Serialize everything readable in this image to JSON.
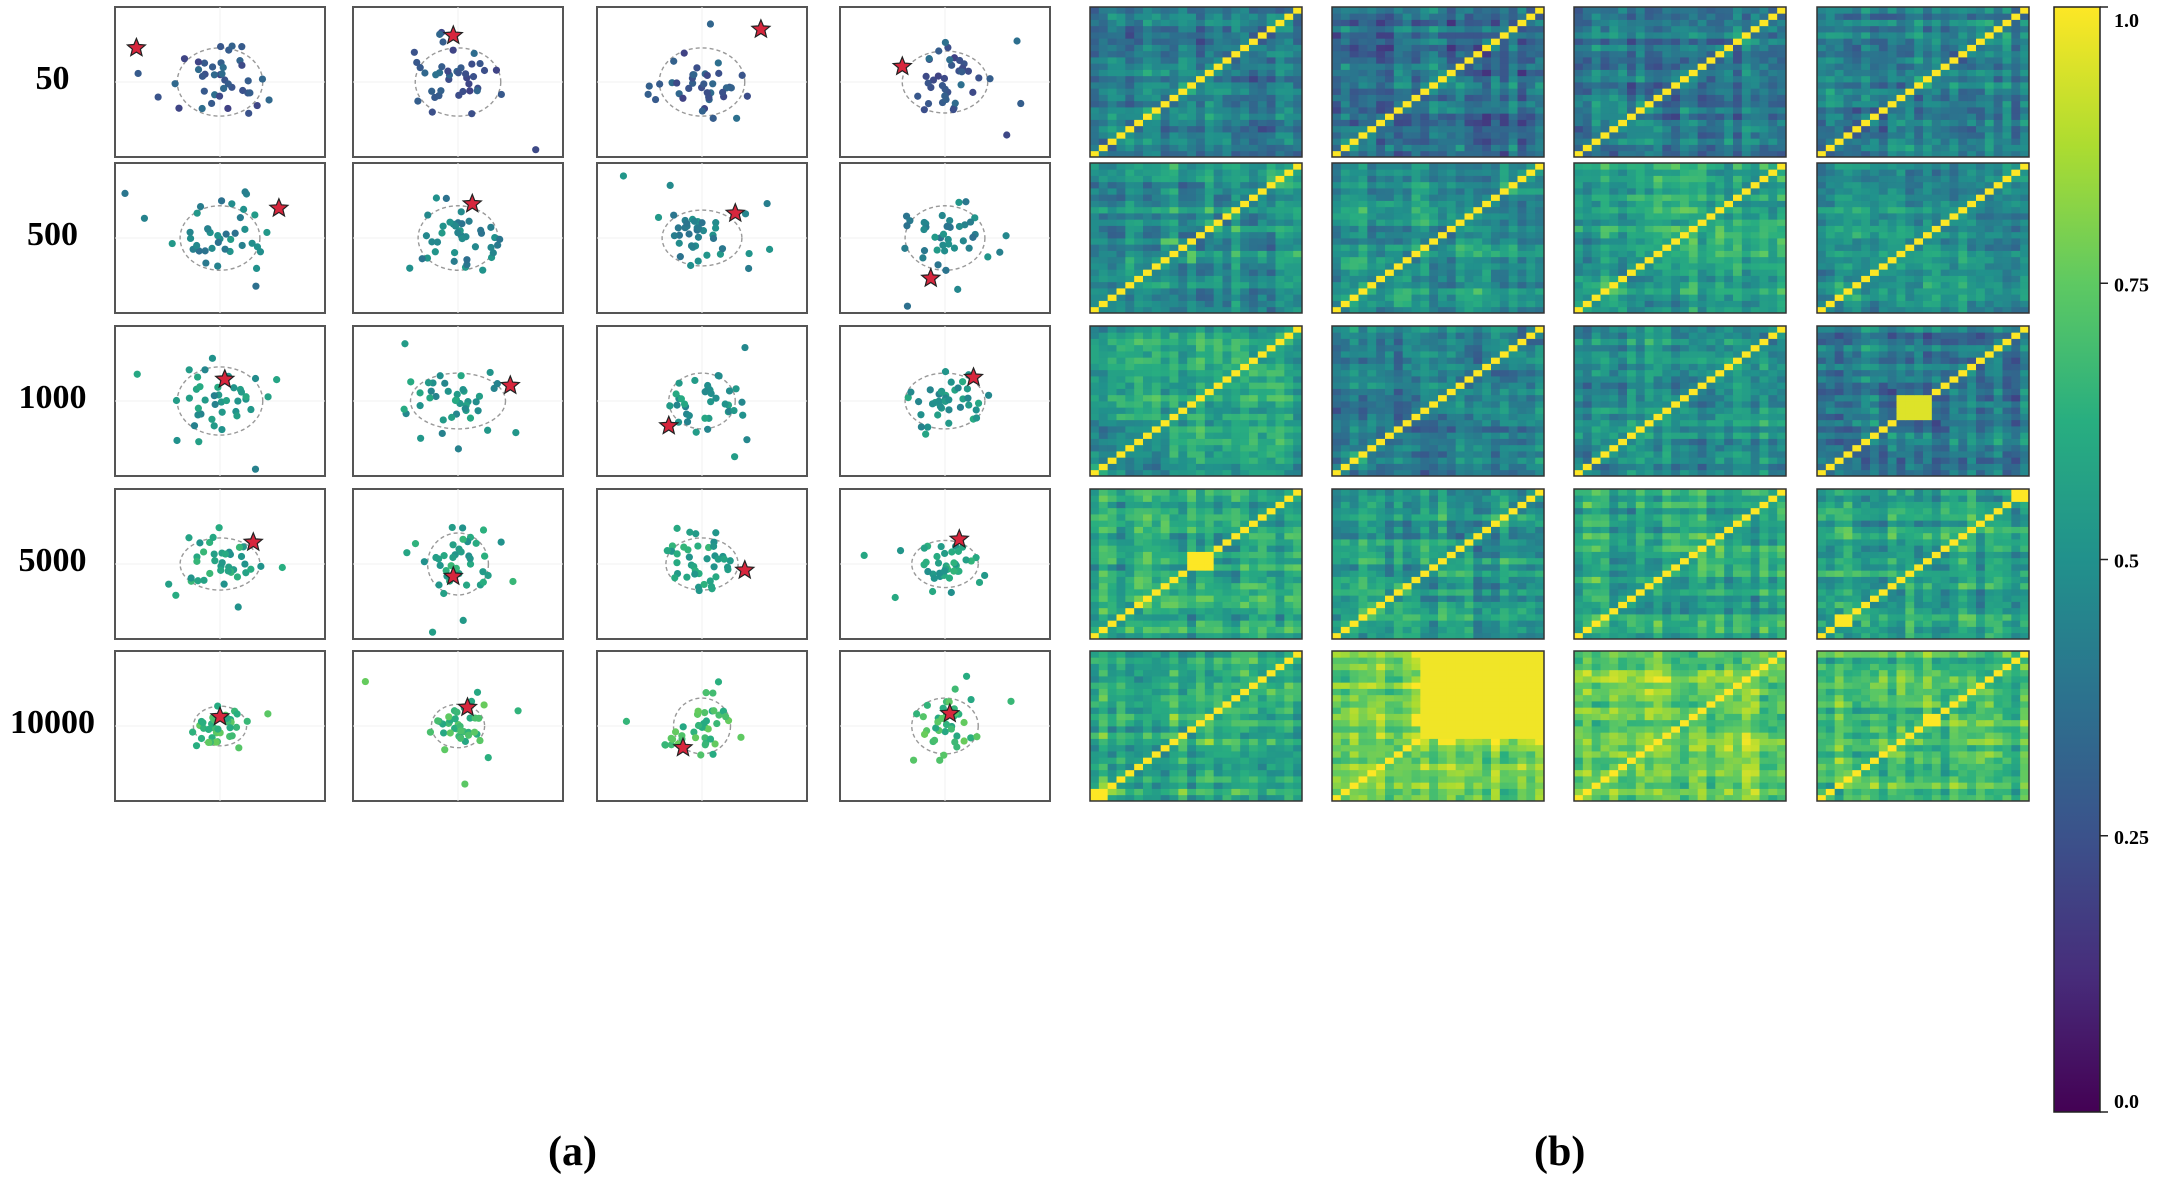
{
  "figure": {
    "panel_a_label": "(a)",
    "panel_b_label": "(b)",
    "row_labels": [
      "50",
      "500",
      "1000",
      "5000",
      "10000"
    ]
  },
  "colorbar": {
    "tick_labels": [
      "1.0",
      "0.75",
      "0.5",
      "0.25",
      "0.0"
    ],
    "tick_values": [
      1.0,
      0.75,
      0.5,
      0.25,
      0.0
    ],
    "colormap": "viridis",
    "range": [
      0,
      1
    ]
  },
  "chart_data": [
    {
      "type": "scatter",
      "panel": "(a)",
      "rows": [
        "50",
        "500",
        "1000",
        "5000",
        "10000"
      ],
      "columns": 4,
      "points_per_subplot": 40,
      "marker": "red star marks one highlighted point per subplot; dashed gray ellipse encloses the cluster",
      "point_color_value_by_row": [
        0.28,
        0.45,
        0.52,
        0.58,
        0.68
      ],
      "star_positions": [
        [
          [
            -0.88,
            0.55
          ],
          [
            -0.05,
            0.75
          ],
          [
            0.62,
            0.85
          ],
          [
            -0.45,
            0.25
          ]
        ],
        [
          [
            0.62,
            0.48
          ],
          [
            0.15,
            0.55
          ],
          [
            0.35,
            0.4
          ],
          [
            -0.15,
            -0.65
          ]
        ],
        [
          [
            0.05,
            0.35
          ],
          [
            0.55,
            0.25
          ],
          [
            -0.35,
            -0.4
          ],
          [
            0.3,
            0.38
          ]
        ],
        [
          [
            0.35,
            0.35
          ],
          [
            -0.05,
            -0.2
          ],
          [
            0.45,
            -0.1
          ],
          [
            0.15,
            0.4
          ]
        ],
        [
          [
            0.0,
            0.15
          ],
          [
            0.1,
            0.3
          ],
          [
            -0.2,
            -0.35
          ],
          [
            0.05,
            0.2
          ]
        ]
      ],
      "ellipse_radii": [
        [
          [
            0.45,
            0.55
          ],
          [
            0.45,
            0.55
          ],
          [
            0.45,
            0.55
          ],
          [
            0.45,
            0.5
          ]
        ],
        [
          [
            0.42,
            0.52
          ],
          [
            0.42,
            0.52
          ],
          [
            0.42,
            0.45
          ],
          [
            0.42,
            0.52
          ]
        ],
        [
          [
            0.45,
            0.55
          ],
          [
            0.5,
            0.45
          ],
          [
            0.35,
            0.45
          ],
          [
            0.42,
            0.45
          ]
        ],
        [
          [
            0.42,
            0.42
          ],
          [
            0.32,
            0.5
          ],
          [
            0.38,
            0.42
          ],
          [
            0.35,
            0.38
          ]
        ],
        [
          [
            0.28,
            0.32
          ],
          [
            0.28,
            0.35
          ],
          [
            0.3,
            0.45
          ],
          [
            0.35,
            0.45
          ]
        ]
      ]
    },
    {
      "type": "heatmap",
      "panel": "(b)",
      "rows": [
        "50",
        "500",
        "1000",
        "5000",
        "10000"
      ],
      "columns": 4,
      "matrix_size": 24,
      "diagonal_value": 1.0,
      "value_range": [
        0,
        1
      ],
      "mean_offdiagonal_by_cell": [
        [
          0.42,
          0.36,
          0.4,
          0.42
        ],
        [
          0.52,
          0.5,
          0.56,
          0.48
        ],
        [
          0.55,
          0.42,
          0.52,
          0.4
        ],
        [
          0.6,
          0.54,
          0.58,
          0.6
        ],
        [
          0.64,
          0.78,
          0.76,
          0.68
        ]
      ],
      "block_features": [
        {
          "row": 4,
          "col": 1,
          "range": [
            10,
            23
          ],
          "value": 0.98
        },
        {
          "row": 2,
          "col": 3,
          "range": [
            9,
            12
          ],
          "value": 0.95
        },
        {
          "row": 3,
          "col": 0,
          "range": [
            11,
            13
          ],
          "value": 1.0
        },
        {
          "row": 4,
          "col": 0,
          "range": [
            0,
            1
          ],
          "value": 1.0
        },
        {
          "row": 3,
          "col": 3,
          "range": [
            2,
            3
          ],
          "value": 1.0
        },
        {
          "row": 4,
          "col": 3,
          "range": [
            12,
            13
          ],
          "value": 1.0
        },
        {
          "row": 3,
          "col": 3,
          "range": [
            22,
            23
          ],
          "value": 1.0
        }
      ]
    }
  ]
}
